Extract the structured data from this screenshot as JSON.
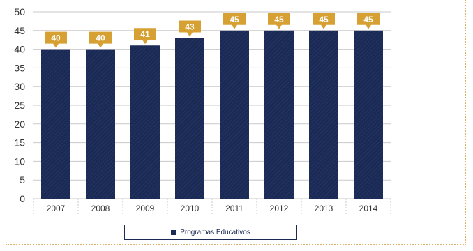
{
  "chart_data": {
    "type": "bar",
    "categories": [
      "2007",
      "2008",
      "2009",
      "2010",
      "2011",
      "2012",
      "2013",
      "2014"
    ],
    "series": [
      {
        "name": "Programas Educativos",
        "values": [
          40,
          40,
          41,
          43,
          45,
          45,
          45,
          45
        ]
      }
    ],
    "data_labels": [
      "40",
      "40",
      "41",
      "43",
      "45",
      "45",
      "45",
      "45"
    ],
    "ylim": [
      0,
      50
    ],
    "yticks": [
      0,
      5,
      10,
      15,
      20,
      25,
      30,
      35,
      40,
      45,
      50
    ],
    "grid": true,
    "legend_position": "bottom-center",
    "colors": {
      "bar": "#1b2a55",
      "label_bg": "#d6a033",
      "label_text": "#ffffff",
      "axis_text": "#333333",
      "grid": "#c9c9c9"
    }
  }
}
